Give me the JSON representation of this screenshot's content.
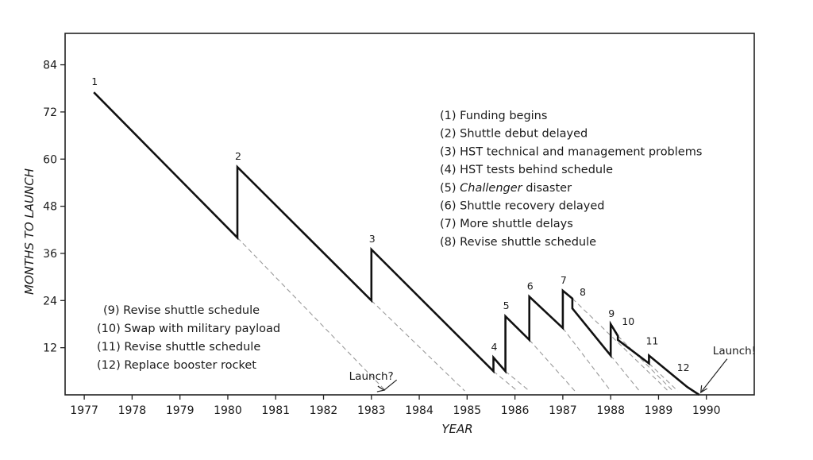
{
  "chart_data": {
    "type": "line",
    "title": "",
    "xlabel": "YEAR",
    "ylabel": "MONTHS TO LAUNCH",
    "xlim": [
      1976.6,
      1991.0
    ],
    "ylim": [
      0,
      92
    ],
    "x_ticks": [
      1977,
      1978,
      1979,
      1980,
      1981,
      1982,
      1983,
      1984,
      1985,
      1986,
      1987,
      1988,
      1989,
      1990
    ],
    "y_ticks": [
      12,
      24,
      36,
      48,
      60,
      72,
      84
    ],
    "grid": false,
    "series": [
      {
        "values": [
          {
            "x": 1977.2,
            "y": 77
          },
          {
            "x": 1980.2,
            "y": 40
          },
          {
            "x": 1980.2,
            "y": 58
          },
          {
            "x": 1983.0,
            "y": 24
          },
          {
            "x": 1983.0,
            "y": 37
          },
          {
            "x": 1985.55,
            "y": 6
          },
          {
            "x": 1985.55,
            "y": 9.5
          },
          {
            "x": 1985.8,
            "y": 6
          },
          {
            "x": 1985.8,
            "y": 20
          },
          {
            "x": 1986.3,
            "y": 14
          },
          {
            "x": 1986.3,
            "y": 25
          },
          {
            "x": 1987.0,
            "y": 17
          },
          {
            "x": 1987.0,
            "y": 26.5
          },
          {
            "x": 1987.2,
            "y": 24.5
          },
          {
            "x": 1987.2,
            "y": 22
          },
          {
            "x": 1988.0,
            "y": 10
          },
          {
            "x": 1988.0,
            "y": 18
          },
          {
            "x": 1988.15,
            "y": 15
          },
          {
            "x": 1988.15,
            "y": 14
          },
          {
            "x": 1988.8,
            "y": 8
          },
          {
            "x": 1988.8,
            "y": 10
          },
          {
            "x": 1989.4,
            "y": 4
          },
          {
            "x": 1989.6,
            "y": 2
          },
          {
            "x": 1989.85,
            "y": 0
          }
        ]
      }
    ],
    "projections": [
      {
        "from": [
          1980.2,
          40
        ],
        "to": [
          1983.3,
          1
        ]
      },
      {
        "from": [
          1983.0,
          24
        ],
        "to": [
          1984.95,
          1
        ]
      },
      {
        "from": [
          1985.55,
          6
        ],
        "to": [
          1986.05,
          1
        ]
      },
      {
        "from": [
          1985.8,
          6
        ],
        "to": [
          1986.3,
          1
        ]
      },
      {
        "from": [
          1986.3,
          14
        ],
        "to": [
          1987.25,
          1
        ]
      },
      {
        "from": [
          1987.0,
          17
        ],
        "to": [
          1988.0,
          1
        ]
      },
      {
        "from": [
          1987.2,
          24.5
        ],
        "to": [
          1989.2,
          1
        ]
      },
      {
        "from": [
          1988.0,
          10
        ],
        "to": [
          1988.6,
          1
        ]
      },
      {
        "from": [
          1988.15,
          15
        ],
        "to": [
          1989.3,
          1
        ]
      },
      {
        "from": [
          1988.8,
          8
        ],
        "to": [
          1989.4,
          1
        ]
      }
    ],
    "events": [
      {
        "label": "1",
        "x": 1977.2,
        "y": 77
      },
      {
        "label": "2",
        "x": 1980.2,
        "y": 58
      },
      {
        "label": "3",
        "x": 1983.0,
        "y": 37
      },
      {
        "label": "4",
        "x": 1985.55,
        "y": 9.5
      },
      {
        "label": "5",
        "x": 1985.8,
        "y": 20
      },
      {
        "label": "6",
        "x": 1986.3,
        "y": 25
      },
      {
        "label": "7",
        "x": 1987.0,
        "y": 26.5
      },
      {
        "label": "8",
        "x": 1987.4,
        "y": 23.5
      },
      {
        "label": "9",
        "x": 1988.0,
        "y": 18
      },
      {
        "label": "10",
        "x": 1988.35,
        "y": 16
      },
      {
        "label": "11",
        "x": 1988.85,
        "y": 11
      },
      {
        "label": "12",
        "x": 1989.5,
        "y": 4.2
      }
    ],
    "legend_upper": [
      {
        "num": "(1)",
        "text": "Funding begins"
      },
      {
        "num": "(2)",
        "text": "Shuttle debut delayed"
      },
      {
        "num": "(3)",
        "text": "HST technical and management problems"
      },
      {
        "num": "(4)",
        "text": "HST tests behind schedule"
      },
      {
        "num": "(5)",
        "text": "Challenger",
        "italic": true,
        "rest": " disaster"
      },
      {
        "num": "(6)",
        "text": "Shuttle recovery delayed"
      },
      {
        "num": "(7)",
        "text": "More shuttle delays"
      },
      {
        "num": "(8)",
        "text": "Revise shuttle schedule"
      }
    ],
    "legend_lower": [
      {
        "num": "(9)",
        "text": "Revise shuttle schedule"
      },
      {
        "num": "(10)",
        "text": "Swap with military payload"
      },
      {
        "num": "(11)",
        "text": "Revise shuttle schedule"
      },
      {
        "num": "(12)",
        "text": "Replace booster rocket"
      }
    ],
    "annotations": [
      {
        "text": "Launch?",
        "x": 1982.6,
        "y": 3
      },
      {
        "text": "Launch!",
        "x": 1990.3,
        "y": 5.5
      }
    ]
  }
}
